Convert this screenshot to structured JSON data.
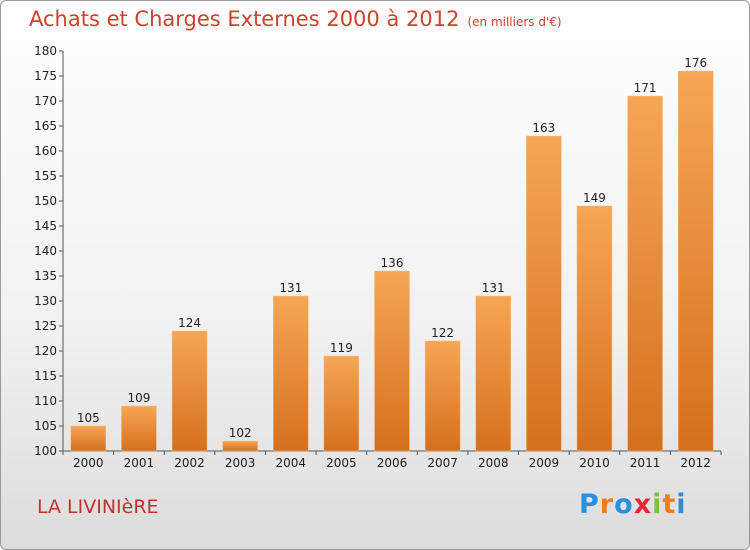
{
  "title": "Achats et Charges Externes 2000 à 2012",
  "subtitle": "(en milliers d'€)",
  "commune": "LA LIVINIèRE",
  "logo": {
    "letters": [
      "P",
      "r",
      "o",
      "x",
      "i",
      "t",
      "i"
    ],
    "colors": [
      "#2b8ee0",
      "#f07d1a",
      "#2b8ee0",
      "#e8263b",
      "#7dc33a",
      "#f07d1a",
      "#2b8ee0"
    ]
  },
  "chart_data": {
    "type": "bar",
    "categories": [
      "2000",
      "2001",
      "2002",
      "2003",
      "2004",
      "2005",
      "2006",
      "2007",
      "2008",
      "2009",
      "2010",
      "2011",
      "2012"
    ],
    "values": [
      105,
      109,
      124,
      102,
      131,
      119,
      136,
      122,
      131,
      163,
      149,
      171,
      176
    ],
    "ylim": [
      100,
      180
    ],
    "yticks": [
      100,
      105,
      110,
      115,
      120,
      125,
      130,
      135,
      140,
      145,
      150,
      155,
      160,
      165,
      170,
      175,
      180
    ],
    "grid": false,
    "bar_color": "#ee8a30"
  }
}
